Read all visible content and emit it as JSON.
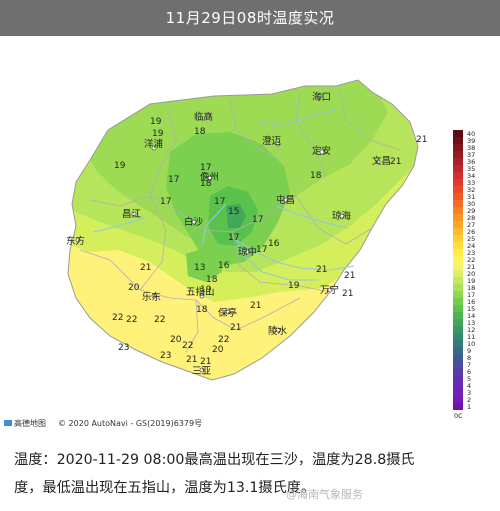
{
  "header": {
    "title": "11月29日08时温度实况"
  },
  "map": {
    "copyright": "© 2020 AutoNavi - GS(2019)6379号",
    "logo_text": "高德地图",
    "colors": {
      "land_low": "#8fdc55",
      "land_mid": "#d5ee5c",
      "land_high": "#fff27a",
      "river": "#8fc8e0",
      "border": "#b5b5b5"
    },
    "place_labels": [
      {
        "text": "海口"
      },
      {
        "text": "临高"
      },
      {
        "text": "洋浦"
      },
      {
        "text": "澄迈"
      },
      {
        "text": "定安"
      },
      {
        "text": "文昌"
      },
      {
        "text": "儋州"
      },
      {
        "text": "屯昌"
      },
      {
        "text": "琼海"
      },
      {
        "text": "白沙"
      },
      {
        "text": "昌江"
      },
      {
        "text": "琼中"
      },
      {
        "text": "东方"
      },
      {
        "text": "万宁"
      },
      {
        "text": "乐东"
      },
      {
        "text": "五指山"
      },
      {
        "text": "保亭"
      },
      {
        "text": "陵水"
      },
      {
        "text": "三亚"
      }
    ],
    "temperature_labels": [
      {
        "text": "19"
      },
      {
        "text": "19"
      },
      {
        "text": "18"
      },
      {
        "text": "19"
      },
      {
        "text": "21"
      },
      {
        "text": "21"
      },
      {
        "text": "18"
      },
      {
        "text": "17"
      },
      {
        "text": "17"
      },
      {
        "text": "18"
      },
      {
        "text": "17"
      },
      {
        "text": "17"
      },
      {
        "text": "15"
      },
      {
        "text": "17"
      },
      {
        "text": "17"
      },
      {
        "text": "16"
      },
      {
        "text": "17"
      },
      {
        "text": "13"
      },
      {
        "text": "16"
      },
      {
        "text": "18"
      },
      {
        "text": "21"
      },
      {
        "text": "19"
      },
      {
        "text": "21"
      },
      {
        "text": "19"
      },
      {
        "text": "21"
      },
      {
        "text": "20"
      },
      {
        "text": "22"
      },
      {
        "text": "18"
      },
      {
        "text": "22"
      },
      {
        "text": "22"
      },
      {
        "text": "20"
      },
      {
        "text": "22"
      },
      {
        "text": "23"
      },
      {
        "text": "23"
      },
      {
        "text": "21"
      },
      {
        "text": "22"
      },
      {
        "text": "21"
      },
      {
        "text": "20"
      },
      {
        "text": "21"
      },
      {
        "text": "21"
      },
      {
        "text": "21"
      }
    ]
  },
  "legend": {
    "unit": "0C",
    "ticks": [
      "40",
      "39",
      "38",
      "37",
      "36",
      "35",
      "34",
      "33",
      "32",
      "31",
      "30",
      "29",
      "28",
      "27",
      "26",
      "25",
      "24",
      "23",
      "22",
      "21",
      "20",
      "19",
      "18",
      "17",
      "16",
      "15",
      "14",
      "13",
      "12",
      "11",
      "10",
      "9",
      "8",
      "7",
      "6",
      "5",
      "4",
      "3",
      "2",
      "1"
    ],
    "colors": [
      "#5a0a14",
      "#6e0f1a",
      "#82141f",
      "#961a24",
      "#aa2028",
      "#be282c",
      "#d23030",
      "#e03a2c",
      "#ea4a28",
      "#f05a24",
      "#f46c22",
      "#f88020",
      "#fa9422",
      "#fca826",
      "#fdbc2a",
      "#fecf30",
      "#ffe038",
      "#ffee48",
      "#fff55a",
      "#f2f36a",
      "#dcee6a",
      "#c4e862",
      "#aae05a",
      "#8fd852",
      "#74ce4e",
      "#5cc24c",
      "#4cb452",
      "#42a65c",
      "#3a9868",
      "#36896f",
      "#357a7a",
      "#396b86",
      "#3f5c92",
      "#4a4e9e",
      "#553fa8",
      "#6034b0",
      "#6a2ab6",
      "#7222b8",
      "#761ab6",
      "#7212a8"
    ]
  },
  "caption": {
    "line1": "温度：2020-11-29 08:00最高温出现在三沙，温度为28.8摄氏",
    "line2": "度，最低温出现在五指山，温度为13.1摄氏度。"
  },
  "watermark": {
    "text": "@海南气象服务"
  }
}
